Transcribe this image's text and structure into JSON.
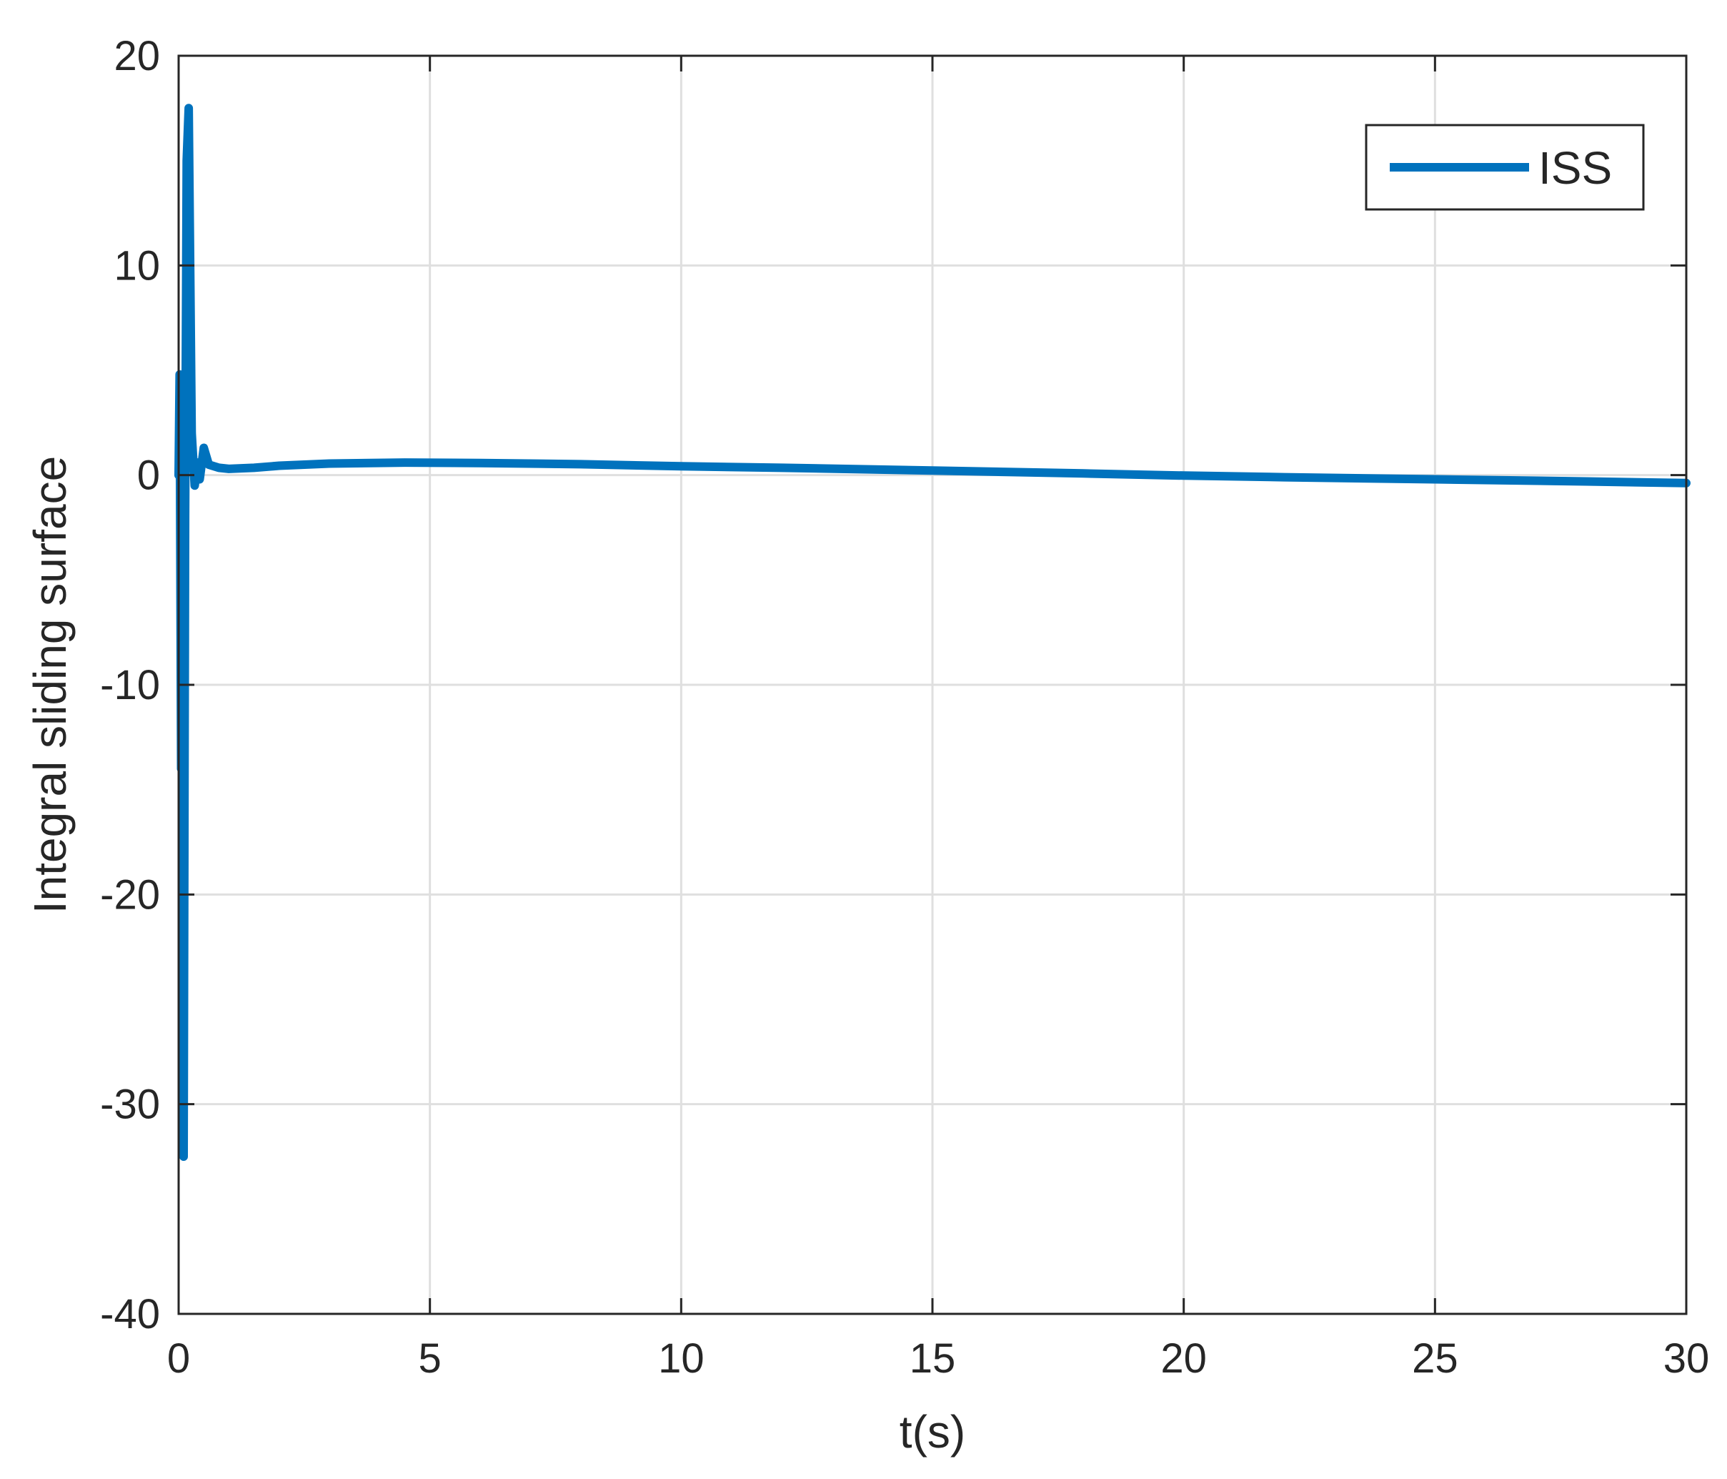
{
  "chart_data": {
    "type": "line",
    "xlabel": "t(s)",
    "ylabel": "Integral sliding surface",
    "xlim": [
      0,
      30
    ],
    "ylim": [
      -40,
      20
    ],
    "xticks": [
      0,
      5,
      10,
      15,
      20,
      25,
      30
    ],
    "yticks": [
      -40,
      -30,
      -20,
      -10,
      0,
      10,
      20
    ],
    "xtick_labels": [
      "0",
      "5",
      "10",
      "15",
      "20",
      "25",
      "30"
    ],
    "ytick_labels": [
      "-40",
      "-30",
      "-20",
      "-10",
      "0",
      "10",
      "20"
    ],
    "grid": true,
    "legend": {
      "position": "top-right",
      "entries": [
        "ISS"
      ]
    },
    "series": [
      {
        "name": "ISS",
        "color": "#0072BD",
        "points": [
          [
            0,
            0
          ],
          [
            0.02,
            4.8
          ],
          [
            0.05,
            -14
          ],
          [
            0.08,
            4.8
          ],
          [
            0.1,
            -32.5
          ],
          [
            0.13,
            -2
          ],
          [
            0.16,
            15
          ],
          [
            0.2,
            17.5
          ],
          [
            0.26,
            2
          ],
          [
            0.32,
            -0.5
          ],
          [
            0.38,
            0.6
          ],
          [
            0.42,
            -0.2
          ],
          [
            0.5,
            1.3
          ],
          [
            0.6,
            0.5
          ],
          [
            0.8,
            0.35
          ],
          [
            1,
            0.3
          ],
          [
            1.5,
            0.35
          ],
          [
            2,
            0.45
          ],
          [
            3,
            0.55
          ],
          [
            4.5,
            0.6
          ],
          [
            6,
            0.58
          ],
          [
            8,
            0.52
          ],
          [
            10,
            0.42
          ],
          [
            12,
            0.35
          ],
          [
            15,
            0.22
          ],
          [
            18,
            0.08
          ],
          [
            20,
            -0.02
          ],
          [
            22,
            -0.1
          ],
          [
            25,
            -0.2
          ],
          [
            28,
            -0.3
          ],
          [
            30,
            -0.38
          ]
        ]
      }
    ]
  }
}
